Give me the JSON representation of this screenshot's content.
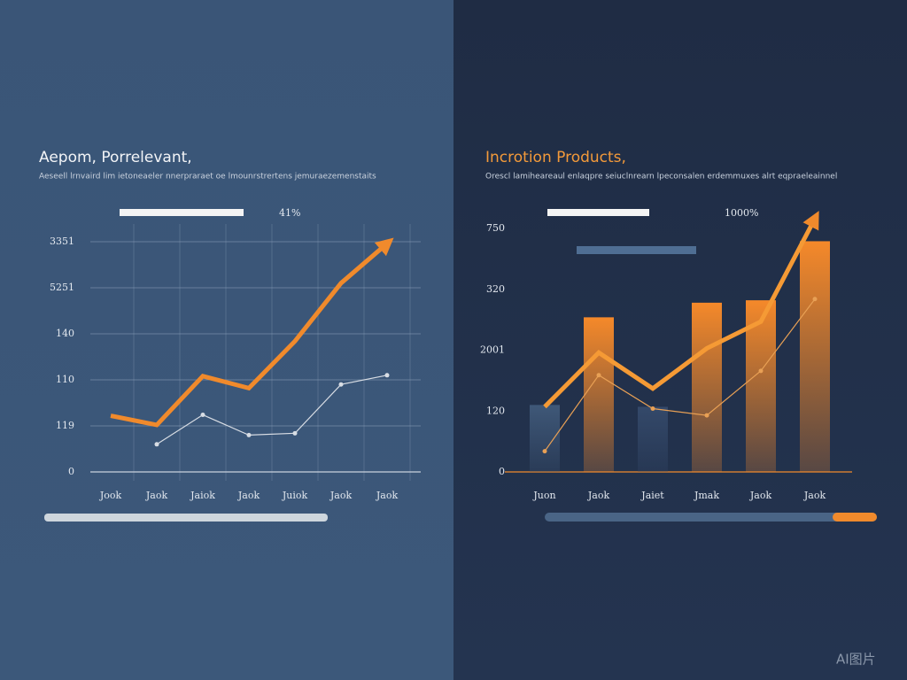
{
  "chart_data": [
    {
      "type": "line",
      "title": "Aepom, Porrelevant,",
      "subtitle": "Aeseell lrnvaird lim ietoneaeler nnerpraraet oe lmounrstrertens jemuraezemenstaits",
      "annotation": "41%",
      "categories": [
        "Jook",
        "Jaok",
        "Jaiok",
        "Jaok",
        "Juiok",
        "Jaok",
        "Jaok"
      ],
      "ylim": [
        0,
        250
      ],
      "yticks": [
        0,
        {
          "value": 50,
          "label": "119"
        },
        {
          "value": 100,
          "label": "110"
        },
        {
          "value": 150,
          "label": "140"
        },
        {
          "value": 200,
          "label": "5251"
        },
        {
          "value": 250,
          "label": "3351"
        }
      ],
      "grid": true,
      "series": [
        {
          "color": "#f08a2c",
          "values": [
            61,
            51,
            104,
            91,
            142,
            205,
            248
          ]
        },
        {
          "color": "#d8dde4",
          "values": [
            null,
            30,
            62,
            40,
            42,
            95,
            105
          ]
        }
      ]
    },
    {
      "type": "bar",
      "title": "Incrotion Products,",
      "subtitle": "Orescl lamiheareaul enlaqpre seiuclnrearn lpeconsalen erdemmuxes alrt eqpraeleainnel",
      "annotation": "1000%",
      "categories": [
        "Juon",
        "Jaok",
        "Jaiet",
        "Jmak",
        "Jaok",
        "Jaok"
      ],
      "values": [
        110,
        254,
        107,
        278,
        282,
        379
      ],
      "colors": [
        "#3f5878",
        "#f5892a",
        "#34496a",
        "#f5892a",
        "#f5892a",
        "#f5892a"
      ],
      "ylim": [
        0,
        400
      ],
      "yticks": [
        0,
        {
          "value": 100,
          "label": "120"
        },
        {
          "value": 200,
          "label": "2001"
        },
        {
          "value": 300,
          "label": "320"
        },
        {
          "value": 400,
          "label": "750"
        }
      ],
      "grid": false,
      "series": [
        {
          "color": "#f59a35",
          "values": [
            107,
            196,
            137,
            203,
            247,
            416
          ]
        },
        {
          "color": "#e8a055",
          "values": [
            34,
            159,
            104,
            93,
            166,
            284
          ]
        }
      ]
    }
  ],
  "watermark": "AI图片"
}
